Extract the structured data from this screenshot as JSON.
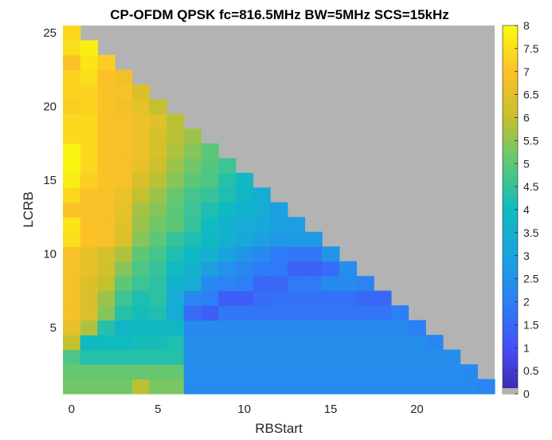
{
  "chart_data": {
    "type": "heatmap",
    "title": "CP-OFDM QPSK fc=816.5MHz BW=5MHz SCS=15kHz",
    "xlabel": "RBStart",
    "ylabel": "LCRB",
    "x_range": [
      0,
      24
    ],
    "y_range": [
      1,
      25
    ],
    "xticks": [
      0,
      5,
      10,
      15,
      20
    ],
    "yticks": [
      5,
      10,
      15,
      20,
      25
    ],
    "colorbar": {
      "min": 0,
      "max": 8,
      "ticks": [
        0,
        0.5,
        1,
        1.5,
        2,
        2.5,
        3,
        3.5,
        4,
        4.5,
        5,
        5.5,
        6,
        6.5,
        7,
        7.5,
        8
      ],
      "tick_labels": [
        "0",
        "0.5",
        "1",
        "1.5",
        "2",
        "2.5",
        "3",
        "3.5",
        "4",
        "4.5",
        "5",
        "5.5",
        "6",
        "6.5",
        "7",
        "7.5",
        "8"
      ],
      "zero_color": "#b3b3b3"
    },
    "colormap": "parula",
    "z": [
      [
        5.2,
        5.2,
        5.2,
        5.2,
        5.9,
        5.3,
        5.3,
        2.3,
        2.3,
        2.3,
        2.3,
        2.3,
        2.3,
        2.3,
        2.3,
        2.3,
        2.3,
        2.3,
        2.3,
        2.3,
        2.3,
        2.3,
        2.3,
        2.3,
        2.2
      ],
      [
        5.1,
        5.1,
        5.1,
        5.1,
        5.1,
        5.1,
        5.1,
        2.4,
        2.4,
        2.4,
        2.4,
        2.4,
        2.4,
        2.4,
        2.4,
        2.4,
        2.4,
        2.4,
        2.4,
        2.4,
        2.4,
        2.4,
        2.4,
        2.3
      ],
      [
        4.8,
        4.3,
        4.3,
        4.3,
        4.3,
        4.3,
        4.3,
        2.4,
        2.4,
        2.4,
        2.4,
        2.4,
        2.4,
        2.4,
        2.4,
        2.4,
        2.4,
        2.4,
        2.4,
        2.4,
        2.4,
        2.4,
        2.4
      ],
      [
        6.0,
        3.9,
        4.0,
        4.0,
        4.1,
        4.1,
        4.2,
        2.4,
        2.4,
        2.4,
        2.4,
        2.4,
        2.4,
        2.4,
        2.4,
        2.4,
        2.4,
        2.4,
        2.4,
        2.4,
        2.4,
        2.2
      ],
      [
        6.6,
        5.8,
        4.3,
        3.7,
        3.9,
        3.9,
        3.8,
        2.3,
        2.3,
        2.3,
        2.3,
        2.3,
        2.3,
        2.3,
        2.3,
        2.3,
        2.3,
        2.3,
        2.3,
        2.3,
        2.0
      ],
      [
        6.9,
        6.4,
        5.4,
        4.3,
        4.1,
        4.2,
        3.3,
        1.6,
        1.3,
        1.8,
        1.8,
        1.8,
        1.8,
        1.8,
        1.8,
        1.8,
        1.8,
        1.8,
        1.8,
        2.0
      ],
      [
        6.9,
        6.4,
        5.6,
        4.6,
        4.2,
        4.4,
        3.3,
        2.2,
        2.0,
        1.3,
        1.3,
        1.6,
        1.7,
        1.7,
        1.7,
        1.7,
        1.7,
        1.5,
        1.5
      ],
      [
        6.9,
        6.4,
        6.0,
        5.0,
        4.6,
        4.4,
        3.6,
        3.4,
        2.3,
        2.1,
        2.0,
        1.5,
        1.5,
        1.9,
        1.9,
        2.3,
        2.3,
        2.1
      ],
      [
        6.9,
        6.6,
        6.2,
        5.4,
        4.8,
        4.5,
        4.0,
        3.6,
        2.9,
        2.5,
        2.2,
        1.9,
        1.9,
        1.4,
        1.4,
        1.6,
        2.4
      ],
      [
        6.9,
        6.6,
        6.3,
        5.8,
        5.0,
        4.7,
        4.2,
        3.9,
        3.5,
        3.0,
        2.6,
        2.3,
        1.9,
        1.8,
        1.8,
        2.6
      ],
      [
        7.5,
        7.0,
        6.9,
        6.4,
        5.4,
        5.0,
        4.5,
        4.2,
        3.9,
        3.5,
        3.2,
        2.9,
        2.7,
        2.7,
        2.7
      ],
      [
        7.6,
        7.0,
        6.9,
        6.5,
        5.6,
        5.2,
        5.0,
        4.5,
        4.0,
        3.6,
        3.3,
        3.2,
        2.9,
        2.8
      ],
      [
        7.0,
        6.9,
        6.9,
        6.6,
        5.7,
        5.4,
        5.0,
        4.6,
        4.2,
        3.9,
        3.6,
        3.4,
        2.9
      ],
      [
        7.4,
        7.0,
        6.9,
        6.7,
        6.0,
        5.6,
        5.1,
        4.7,
        4.5,
        4.2,
        3.8,
        3.4
      ],
      [
        7.7,
        7.2,
        7.0,
        6.9,
        6.3,
        5.9,
        5.4,
        5.0,
        4.8,
        4.3,
        3.9
      ],
      [
        7.9,
        7.4,
        7.0,
        6.9,
        6.6,
        6.1,
        5.6,
        5.2,
        4.9,
        4.6
      ],
      [
        7.9,
        7.4,
        7.0,
        6.9,
        6.7,
        6.3,
        5.8,
        5.4,
        5.0
      ],
      [
        7.4,
        7.4,
        7.0,
        6.9,
        6.7,
        6.3,
        5.9,
        5.6
      ],
      [
        7.4,
        7.4,
        7.0,
        6.9,
        6.7,
        6.5,
        5.9
      ],
      [
        7.2,
        7.3,
        7.0,
        6.8,
        6.6,
        6.0
      ],
      [
        7.3,
        7.3,
        7.0,
        6.9,
        6.4
      ],
      [
        7.3,
        7.5,
        7.0,
        6.8
      ],
      [
        7.0,
        7.6,
        7.2
      ],
      [
        7.5,
        7.8
      ],
      [
        7.4
      ]
    ]
  }
}
